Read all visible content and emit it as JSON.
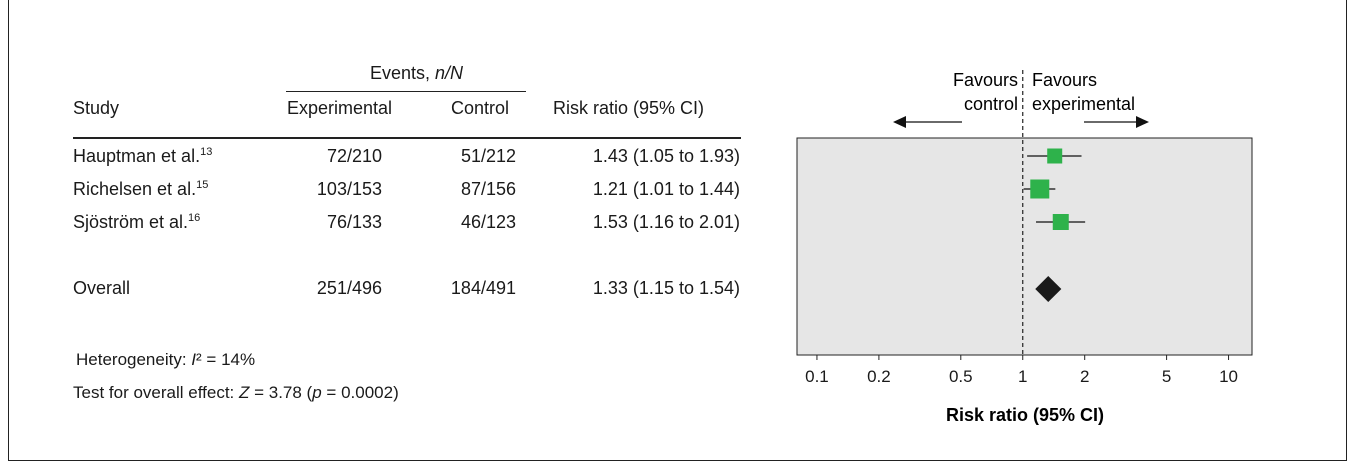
{
  "table": {
    "events_header_text": "Events, ",
    "events_header_italic": "n/N",
    "col_study": "Study",
    "col_experimental": "Experimental",
    "col_control": "Control",
    "col_risk_ratio": "Risk ratio (95% CI)",
    "rows": [
      {
        "study": "Hauptman et al.",
        "ref": "13",
        "experimental": "72/210",
        "control": "51/212",
        "rr": "1.43 (1.05 to 1.93)"
      },
      {
        "study": "Richelsen et al.",
        "ref": "15",
        "experimental": "103/153",
        "control": "87/156",
        "rr": "1.21 (1.01 to 1.44)"
      },
      {
        "study": "Sjöström et al.",
        "ref": "16",
        "experimental": "76/133",
        "control": "46/123",
        "rr": "1.53 (1.16 to 2.01)"
      }
    ],
    "overall": {
      "label": "Overall",
      "experimental": "251/496",
      "control": "184/491",
      "rr": "1.33 (1.15 to 1.54)"
    }
  },
  "footer": {
    "heterogeneity_prefix": "Heterogeneity: ",
    "heterogeneity_symbol": "I",
    "heterogeneity_value": "² = 14%",
    "test_prefix": "Test for overall effect: ",
    "test_z": "Z",
    "test_z_value": " = 3.78 (",
    "test_p": "p",
    "test_p_value": " = 0.0002)"
  },
  "chart_data": {
    "type": "forest",
    "xscale": "log",
    "xlim": [
      0.08,
      13
    ],
    "xticks": [
      "0.1",
      "0.2",
      "0.5",
      "1",
      "2",
      "5",
      "10"
    ],
    "xlabel": "Risk ratio (95% CI)",
    "favours_left": [
      "Favours",
      "control"
    ],
    "favours_right": [
      "Favours",
      "experimental"
    ],
    "reference_line": 1,
    "studies": [
      {
        "name": "Hauptman et al.",
        "rr": 1.43,
        "lo": 1.05,
        "hi": 1.93,
        "weight": 0.25
      },
      {
        "name": "Richelsen et al.",
        "rr": 1.21,
        "lo": 1.01,
        "hi": 1.44,
        "weight": 0.45
      },
      {
        "name": "Sjöström et al.",
        "rr": 1.53,
        "lo": 1.16,
        "hi": 2.01,
        "weight": 0.3
      }
    ],
    "overall": {
      "rr": 1.33,
      "lo": 1.15,
      "hi": 1.54
    },
    "colors": {
      "box": "#2eb24b",
      "panel": "#e6e6e6",
      "diamond": "#1a1a1a"
    }
  }
}
